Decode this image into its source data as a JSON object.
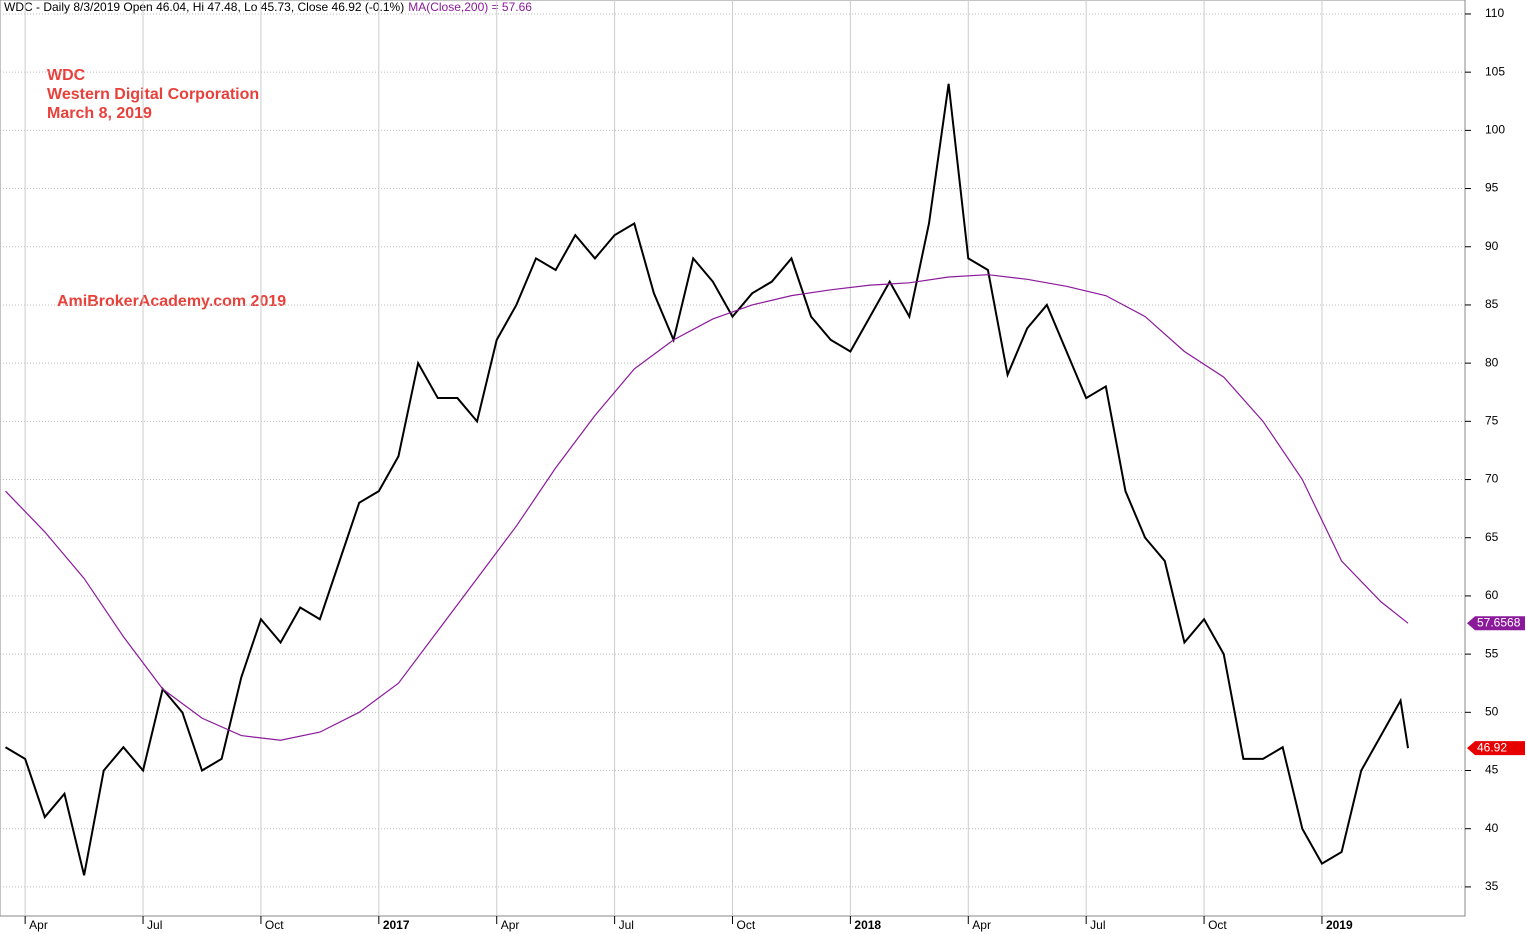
{
  "chart_data": {
    "type": "line",
    "title": "WDC - Daily 8/3/2019 Open 46.04, Hi 47.48, Lo 45.73, Close 46.92 (-0.1%)",
    "ma_caption": "MA(Close,200) = 57.66",
    "annotations": [
      "WDC",
      "Western Digital Corporation",
      "March 8, 2019",
      "AmiBrokerAcademy.com  2019"
    ],
    "xlim": [
      2.36,
      39.64
    ],
    "xticks": [
      {
        "value": 3,
        "label": "Apr"
      },
      {
        "value": 6,
        "label": "Jul"
      },
      {
        "value": 9,
        "label": "Oct"
      },
      {
        "value": 12,
        "label": "2017"
      },
      {
        "value": 15,
        "label": "Apr"
      },
      {
        "value": 18,
        "label": "Jul"
      },
      {
        "value": 21,
        "label": "Oct"
      },
      {
        "value": 24,
        "label": "2018"
      },
      {
        "value": 27,
        "label": "Apr"
      },
      {
        "value": 30,
        "label": "Jul"
      },
      {
        "value": 33,
        "label": "Oct"
      },
      {
        "value": 36,
        "label": "2019"
      }
    ],
    "ylim": [
      32.5,
      111.2
    ],
    "yticks": [
      35,
      40,
      45,
      50,
      55,
      60,
      65,
      70,
      75,
      80,
      85,
      90,
      95,
      100,
      105,
      110
    ],
    "grid": true,
    "series": [
      {
        "name": "WDC",
        "color": "#000000",
        "last_label_color": "#e60000",
        "last_label": "46.92",
        "x": [
          2.5,
          3,
          3.5,
          4,
          4.5,
          5,
          5.5,
          6,
          6.5,
          7,
          7.5,
          8,
          8.5,
          9,
          9.5,
          10,
          10.5,
          11,
          11.5,
          12,
          12.5,
          13,
          13.5,
          14,
          14.5,
          15,
          15.5,
          16,
          16.5,
          17,
          17.5,
          18,
          18.5,
          19,
          19.5,
          20,
          20.5,
          21,
          21.5,
          22,
          22.5,
          23,
          23.5,
          24,
          24.5,
          25,
          25.5,
          26,
          26.5,
          27,
          27.5,
          28,
          28.5,
          29,
          29.5,
          30,
          30.5,
          31,
          31.5,
          32,
          32.5,
          33,
          33.5,
          34,
          34.5,
          35,
          35.5,
          36,
          36.5,
          37,
          37.5,
          38,
          38.19
        ],
        "values": [
          47,
          46,
          41,
          43,
          36,
          45,
          47,
          45,
          52,
          50,
          45,
          46,
          53,
          58,
          56,
          59,
          58,
          63,
          68,
          69,
          72,
          80,
          77,
          77,
          75,
          82,
          85,
          89,
          88,
          91,
          89,
          91,
          92,
          86,
          82,
          89,
          87,
          84,
          86,
          87,
          89,
          84,
          82,
          81,
          84,
          87,
          84,
          92,
          104,
          89,
          88,
          79,
          83,
          85,
          81,
          77,
          78,
          69,
          65,
          63,
          56,
          58,
          55,
          46,
          46,
          47,
          40,
          37,
          38,
          45,
          48,
          51,
          46.92
        ]
      },
      {
        "name": "MA(Close,200)",
        "color": "#8b1a9b",
        "last_label_color": "#8b1a9b",
        "last_label": "57.6568",
        "x": [
          2.5,
          3.5,
          4.5,
          5.5,
          6.5,
          7.5,
          8.5,
          9.5,
          10.5,
          11.5,
          12.5,
          13.5,
          14.5,
          15.5,
          16.5,
          17.5,
          18.5,
          19.5,
          20.5,
          21.5,
          22.5,
          23.5,
          24.5,
          25.5,
          26.5,
          27.5,
          28.5,
          29.5,
          30.5,
          31.5,
          32.5,
          33.5,
          34.5,
          35.5,
          36.5,
          37.5,
          38.19
        ],
        "values": [
          69,
          65.5,
          61.5,
          56.5,
          52,
          49.5,
          48,
          47.6,
          48.3,
          50,
          52.5,
          57,
          61.5,
          66,
          71,
          75.5,
          79.5,
          82,
          83.8,
          85,
          85.8,
          86.3,
          86.7,
          86.9,
          87.4,
          87.6,
          87.2,
          86.6,
          85.8,
          84,
          81,
          78.8,
          75,
          70,
          63,
          59.5,
          57.6568
        ]
      }
    ]
  }
}
